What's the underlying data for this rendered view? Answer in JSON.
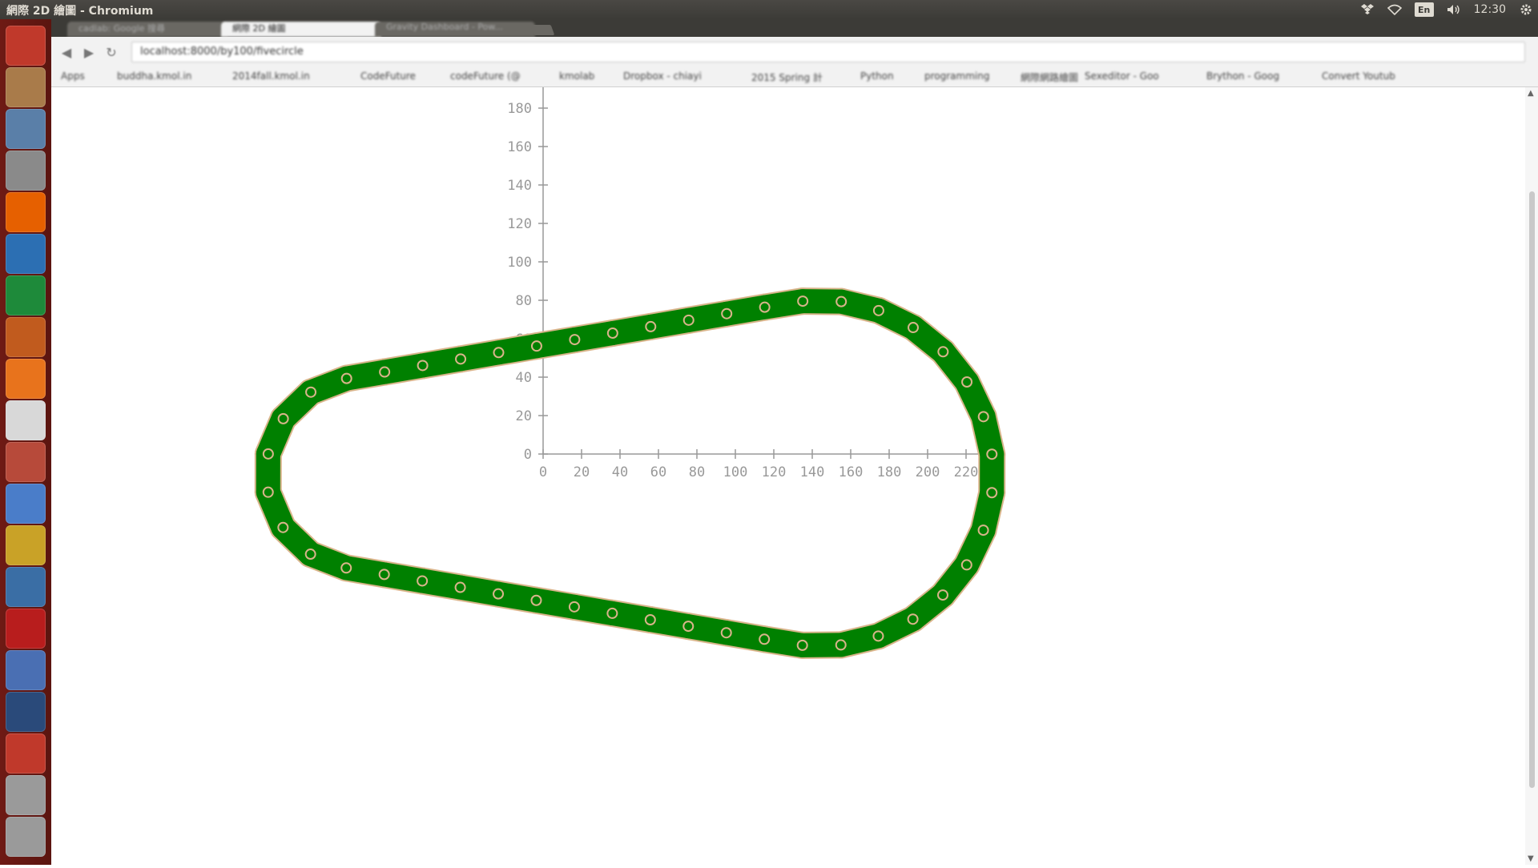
{
  "window": {
    "title": "網際 2D 繪圖 - Chromium"
  },
  "panel": {
    "keyboard_layout": "En",
    "clock": "12:30",
    "tray_icons": [
      "dropbox-icon",
      "wifi-icon",
      "keyboard-icon",
      "volume-icon",
      "clock",
      "gear-icon"
    ]
  },
  "launcher": {
    "items": [
      {
        "name": "ubuntu-dash-icon",
        "color": "#c0392b"
      },
      {
        "name": "files-icon",
        "color": "#a97b4a"
      },
      {
        "name": "computer-icon",
        "color": "#5a7fa8"
      },
      {
        "name": "text-editor-icon",
        "color": "#8a8a8a"
      },
      {
        "name": "firefox-icon",
        "color": "#e66000"
      },
      {
        "name": "writer-icon",
        "color": "#2c6fb3"
      },
      {
        "name": "calc-icon",
        "color": "#1e8a3a"
      },
      {
        "name": "impress-icon",
        "color": "#c15b1e"
      },
      {
        "name": "software-center-icon",
        "color": "#e8731c"
      },
      {
        "name": "amazon-icon",
        "color": "#d8d8d8"
      },
      {
        "name": "system-settings-icon",
        "color": "#b74a3a"
      },
      {
        "name": "chromium-icon",
        "color": "#4a7dc9"
      },
      {
        "name": "xterm-icon",
        "color": "#c9a227"
      },
      {
        "name": "system-monitor-icon",
        "color": "#3a6ea5"
      },
      {
        "name": "filezilla-icon",
        "color": "#b81d1d"
      },
      {
        "name": "app-icon",
        "color": "#4a6fb3"
      },
      {
        "name": "kdiff-icon",
        "color": "#2a4a7a"
      },
      {
        "name": "app-icon-2",
        "color": "#c0392b"
      },
      {
        "name": "workspace-switcher-icon",
        "color": "#9a9a9a"
      },
      {
        "name": "trash-icon",
        "color": "#9a9a9a"
      }
    ]
  },
  "browser": {
    "tabs": [
      {
        "label": "cadlab: Google 搜尋",
        "active": false
      },
      {
        "label": "網際 2D 繪圖",
        "active": true
      },
      {
        "label": "Gravity Dashboard - Pow...",
        "active": false
      }
    ],
    "address": "localhost:8000/by100/fivecircle",
    "bookmarks": [
      "Apps",
      "buddha.kmol.in",
      "2014fall.kmol.in",
      "CodeFuture",
      "codeFuture (@",
      "kmolab",
      "Dropbox - chiayi",
      "2015 Spring 計",
      "Python",
      "programming",
      "網際網路繪圖",
      "Sexeditor - Goo",
      "Brython - Goog",
      "Convert Youtub"
    ]
  },
  "chart_data": {
    "type": "scatter",
    "title": "",
    "xlabel": "",
    "ylabel": "",
    "xlim": [
      0,
      230
    ],
    "ylim": [
      0,
      185
    ],
    "x_ticks": [
      0,
      20,
      40,
      60,
      80,
      100,
      120,
      140,
      160,
      180,
      200,
      220
    ],
    "y_ticks": [
      0,
      20,
      40,
      60,
      80,
      100,
      120,
      140,
      160,
      180
    ],
    "colors": {
      "link_fill": "#008000",
      "link_stroke": "#d8b48a",
      "pin": "#d8b48a",
      "axis": "#999999"
    },
    "small_sprocket": {
      "center": [
        -94,
        -10
      ],
      "radius": 50,
      "pitch": 20
    },
    "large_sprocket": {
      "center": [
        144,
        -10
      ],
      "radius": 90,
      "pitch": 20
    }
  }
}
